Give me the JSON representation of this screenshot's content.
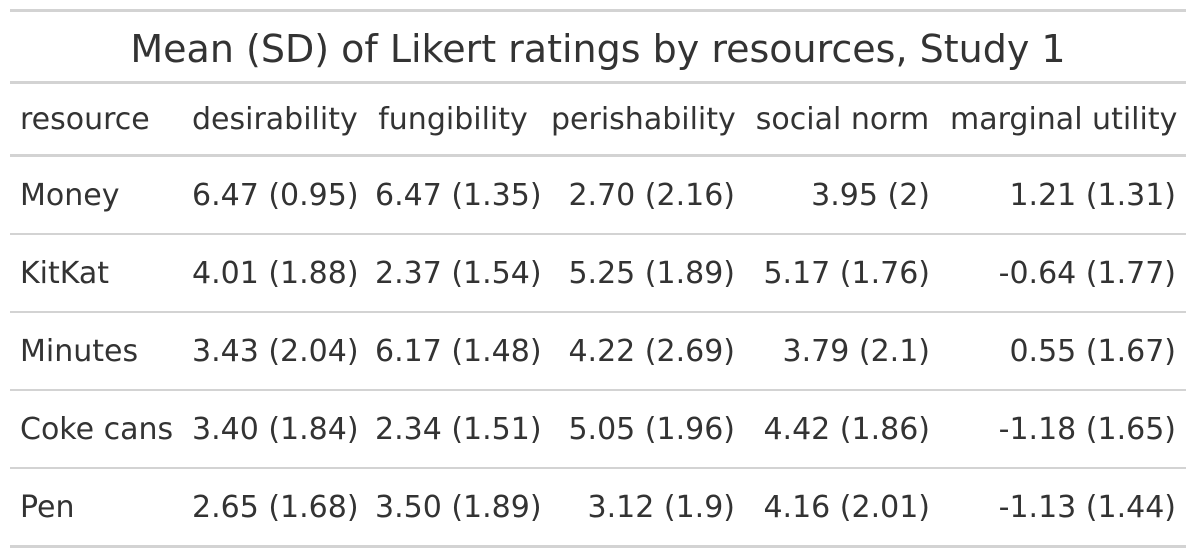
{
  "table": {
    "title": "Mean (SD) of Likert ratings by resources, Study 1",
    "columns": [
      "resource",
      "desirability",
      "fungibility",
      "perishability",
      "social norm",
      "marginal utility"
    ],
    "rows": [
      [
        "Money",
        "6.47 (0.95)",
        "6.47 (1.35)",
        "2.70 (2.16)",
        "3.95 (2)",
        "1.21 (1.31)"
      ],
      [
        "KitKat",
        "4.01 (1.88)",
        "2.37 (1.54)",
        "5.25 (1.89)",
        "5.17 (1.76)",
        "-0.64 (1.77)"
      ],
      [
        "Minutes",
        "3.43 (2.04)",
        "6.17 (1.48)",
        "4.22 (2.69)",
        "3.79 (2.1)",
        "0.55 (1.67)"
      ],
      [
        "Coke cans",
        "3.40 (1.84)",
        "2.34 (1.51)",
        "5.05 (1.96)",
        "4.42 (1.86)",
        "-1.18 (1.65)"
      ],
      [
        "Pen",
        "2.65 (1.68)",
        "3.50 (1.89)",
        "3.12 (1.9)",
        "4.16 (2.01)",
        "-1.13 (1.44)"
      ]
    ]
  },
  "colors": {
    "text": "#333333",
    "rule": "#d3d3d3",
    "background": "#ffffff"
  }
}
